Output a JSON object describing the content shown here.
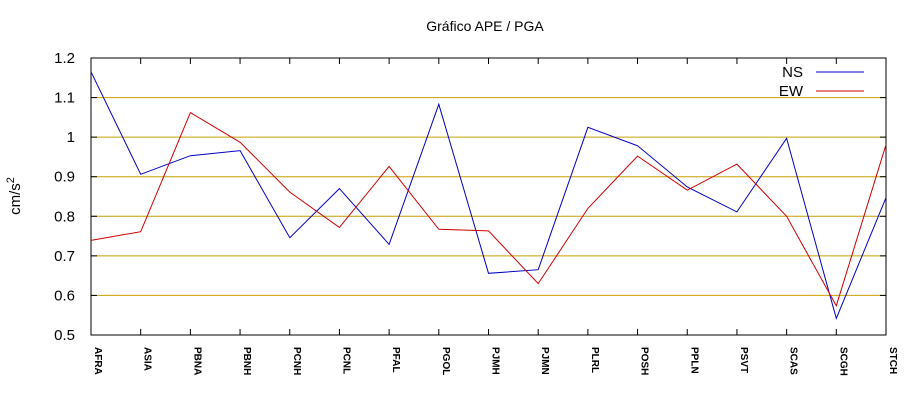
{
  "chart_data": {
    "type": "line",
    "title": "Gráfico  APE / PGA",
    "xlabel": "",
    "ylabel": "cm/s",
    "ylabel_exponent": "2",
    "ylim": [
      0.5,
      1.2
    ],
    "yticks": [
      0.5,
      0.6,
      0.7,
      0.8,
      0.9,
      1.0,
      1.1,
      1.2
    ],
    "ytick_labels": [
      "0.5",
      "0.6",
      "0.7",
      "0.8",
      "0.9",
      "1",
      "1.1",
      "1.2"
    ],
    "grid": true,
    "legend_position": "top-right",
    "categories": [
      "AFRA",
      "ASIA",
      "PBNA",
      "PBNH",
      "PCNH",
      "PCNL",
      "PFAL",
      "PGOL",
      "PJMH",
      "PJMN",
      "PLRL",
      "POSH",
      "PPLN",
      "PSVT",
      "SCAS",
      "SCGH",
      "STCH"
    ],
    "series": [
      {
        "name": "NS",
        "color": "#0000c0",
        "values": [
          1.165,
          0.906,
          0.953,
          0.966,
          0.746,
          0.87,
          0.729,
          1.083,
          0.656,
          0.665,
          1.025,
          0.978,
          0.874,
          0.811,
          0.997,
          0.542,
          0.847
        ]
      },
      {
        "name": "EW",
        "color": "#d00000",
        "values": [
          0.739,
          0.761,
          1.062,
          0.987,
          0.861,
          0.772,
          0.926,
          0.767,
          0.763,
          0.63,
          0.82,
          0.952,
          0.866,
          0.932,
          0.8,
          0.574,
          0.981
        ]
      }
    ],
    "grid_color": "#c8a000"
  }
}
